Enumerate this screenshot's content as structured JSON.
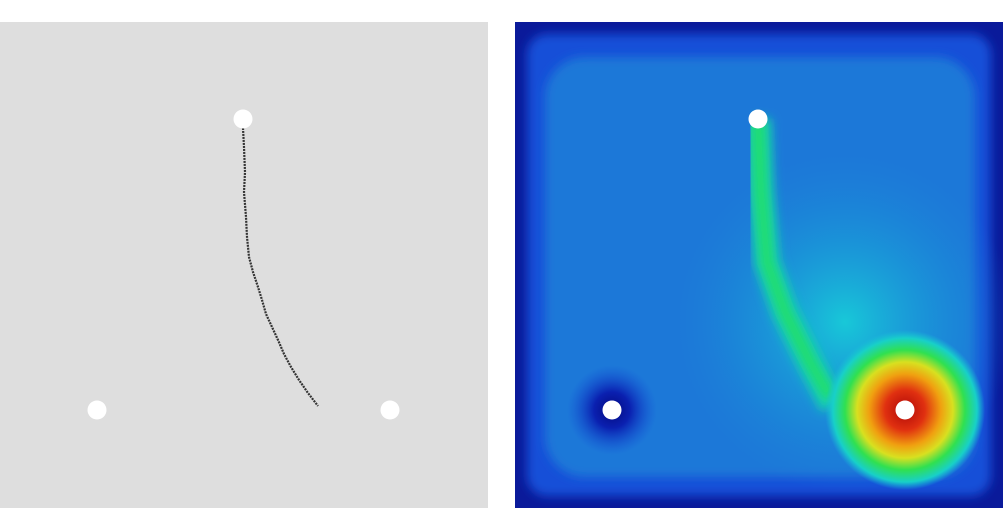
{
  "left_panel": {
    "background": "#dedede",
    "hole_color": "#ffffff",
    "crack_color": "#333333"
  },
  "right_panel": {
    "colormap": [
      "#0a1a9a",
      "#1550d8",
      "#1a8ad8",
      "#18d0d8",
      "#20e060",
      "#e8e020",
      "#f08010",
      "#c01010"
    ],
    "hole_color": "#ffffff"
  }
}
